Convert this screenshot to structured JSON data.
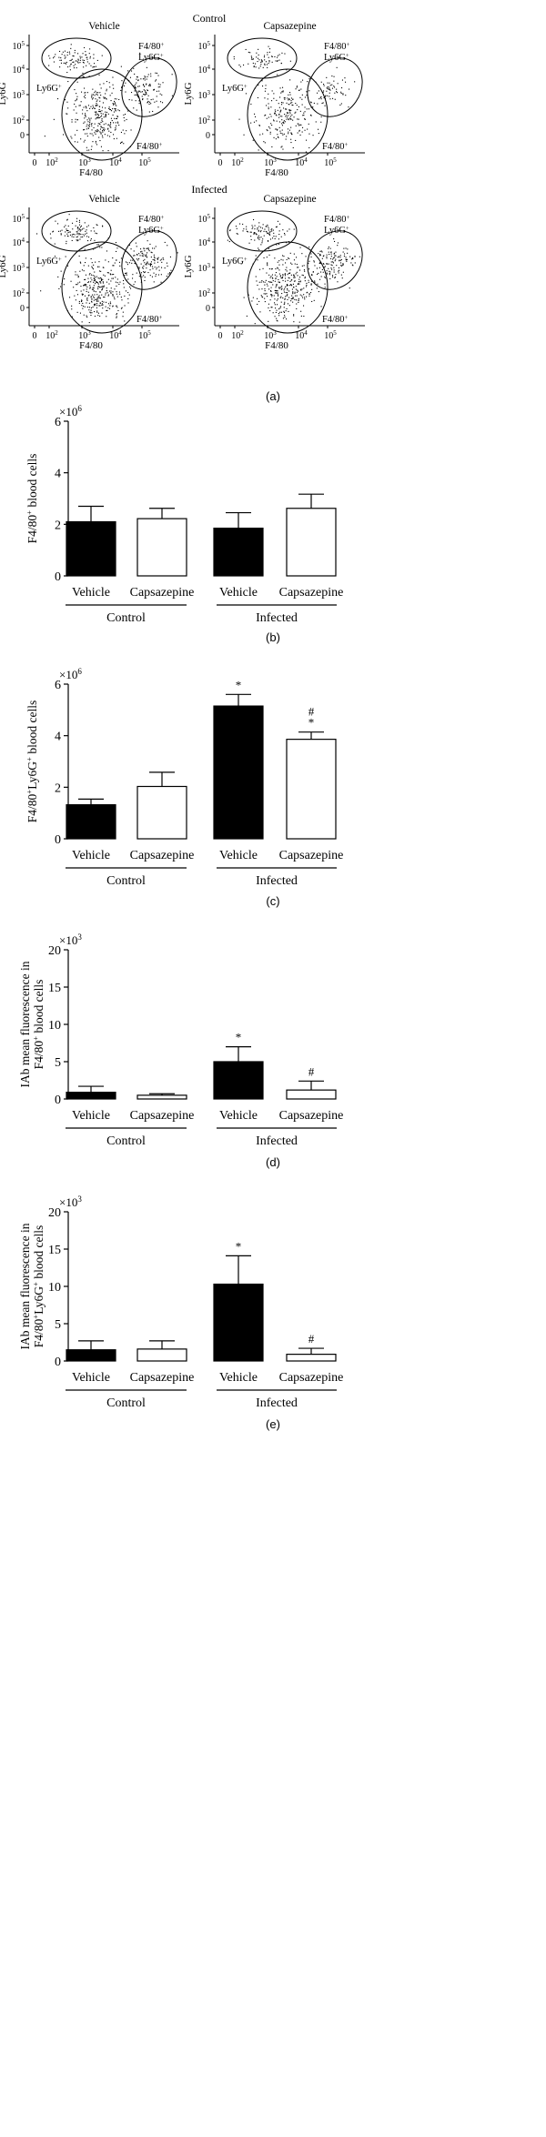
{
  "flow": {
    "caption": "(a)",
    "rows": [
      {
        "row_label": "Control",
        "plots": [
          {
            "title": "Vehicle",
            "density": 1
          },
          {
            "title": "Capsazepine",
            "density": 0.75
          }
        ]
      },
      {
        "row_label": "Infected",
        "plots": [
          {
            "title": "Vehicle",
            "density": 1.1
          },
          {
            "title": "Capsazepine",
            "density": 1.1
          }
        ]
      }
    ],
    "xlabel": "F4/80",
    "ylabel": "Ly6G",
    "x_ticks": [
      "0",
      "10",
      "10",
      "10",
      "10"
    ],
    "x_tick_exps": [
      "",
      "2",
      "3",
      "4",
      "5"
    ],
    "y_ticks": [
      "0",
      "10",
      "10",
      "10",
      "10"
    ],
    "y_tick_exps": [
      "",
      "2",
      "3",
      "4",
      "5"
    ],
    "gate_labels": {
      "ly6g": {
        "base": "Ly6G",
        "sup": "+"
      },
      "f480": {
        "base": "F4/80",
        "sup": "+"
      },
      "double_1": {
        "base": "F4/80",
        "sup": "+"
      },
      "double_2": {
        "base": "Ly6G",
        "sup": "+"
      }
    }
  },
  "chart_data": [
    {
      "type": "bar",
      "caption": "(b)",
      "ylabel": "F4/80+ blood cells",
      "ylabel_parts": [
        {
          "t": "F4/80"
        },
        {
          "t": "+",
          "sup": true
        },
        {
          "t": " blood cells"
        }
      ],
      "y_multiplier": "×10",
      "y_multiplier_exp": "6",
      "ylim": [
        0,
        6
      ],
      "yticks": [
        "0",
        "2",
        "4",
        "6"
      ],
      "categories": [
        "Vehicle",
        "Capsazepine",
        "Vehicle",
        "Capsazepine"
      ],
      "groups": [
        "Control",
        "Infected"
      ],
      "fills": [
        "#000000",
        "#ffffff",
        "#000000",
        "#ffffff"
      ],
      "values": [
        2.1,
        2.22,
        1.85,
        2.62
      ],
      "errors": [
        0.6,
        0.4,
        0.6,
        0.55
      ],
      "annotations": [
        "",
        "",
        "",
        ""
      ]
    },
    {
      "type": "bar",
      "caption": "(c)",
      "ylabel": "F4/80+Ly6G+ blood cells",
      "ylabel_parts": [
        {
          "t": "F4/80"
        },
        {
          "t": "+",
          "sup": true
        },
        {
          "t": "Ly6G"
        },
        {
          "t": "+",
          "sup": true
        },
        {
          "t": " blood cells"
        }
      ],
      "y_multiplier": "×10",
      "y_multiplier_exp": "6",
      "ylim": [
        0,
        6
      ],
      "yticks": [
        "0",
        "2",
        "4",
        "6"
      ],
      "categories": [
        "Vehicle",
        "Capsazepine",
        "Vehicle",
        "Capsazepine"
      ],
      "groups": [
        "Control",
        "Infected"
      ],
      "fills": [
        "#000000",
        "#ffffff",
        "#000000",
        "#ffffff"
      ],
      "values": [
        1.32,
        2.03,
        5.15,
        3.86
      ],
      "errors": [
        0.22,
        0.55,
        0.45,
        0.28
      ],
      "annotations": [
        "",
        "",
        "*",
        "#|*"
      ]
    },
    {
      "type": "bar",
      "caption": "(d)",
      "ylabel": "IAb mean fluorescence in F4/80+ blood cells",
      "ylabel_line1": [
        {
          "t": "IAb mean fluorescence in"
        }
      ],
      "ylabel_line2": [
        {
          "t": "F4/80"
        },
        {
          "t": "+",
          "sup": true
        },
        {
          "t": " blood cells"
        }
      ],
      "y_multiplier": "×10",
      "y_multiplier_exp": "3",
      "ylim": [
        0,
        20
      ],
      "yticks": [
        "0",
        "5",
        "10",
        "15",
        "20"
      ],
      "categories": [
        "Vehicle",
        "Capsazepine",
        "Vehicle",
        "Capsazepine"
      ],
      "groups": [
        "Control",
        "Infected"
      ],
      "fills": [
        "#000000",
        "#ffffff",
        "#000000",
        "#ffffff"
      ],
      "values": [
        0.9,
        0.5,
        5.0,
        1.2
      ],
      "errors": [
        0.8,
        0.2,
        2.0,
        1.2
      ],
      "annotations": [
        "",
        "",
        "*",
        "#"
      ]
    },
    {
      "type": "bar",
      "caption": "(e)",
      "ylabel": "IAb mean fluorescence in F4/80+Ly6G+ blood cells",
      "ylabel_line1": [
        {
          "t": "IAb mean fluorescence in"
        }
      ],
      "ylabel_line2": [
        {
          "t": "F4/80"
        },
        {
          "t": "+",
          "sup": true
        },
        {
          "t": "Ly6G"
        },
        {
          "t": "+",
          "sup": true
        },
        {
          "t": " blood cells"
        }
      ],
      "y_multiplier": "×10",
      "y_multiplier_exp": "3",
      "ylim": [
        0,
        20
      ],
      "yticks": [
        "0",
        "5",
        "10",
        "15",
        "20"
      ],
      "categories": [
        "Vehicle",
        "Capsazepine",
        "Vehicle",
        "Capsazepine"
      ],
      "groups": [
        "Control",
        "Infected"
      ],
      "fills": [
        "#000000",
        "#ffffff",
        "#000000",
        "#ffffff"
      ],
      "values": [
        1.5,
        1.6,
        10.3,
        0.9
      ],
      "errors": [
        1.2,
        1.1,
        3.8,
        0.8
      ],
      "annotations": [
        "",
        "",
        "*",
        "#"
      ]
    }
  ]
}
